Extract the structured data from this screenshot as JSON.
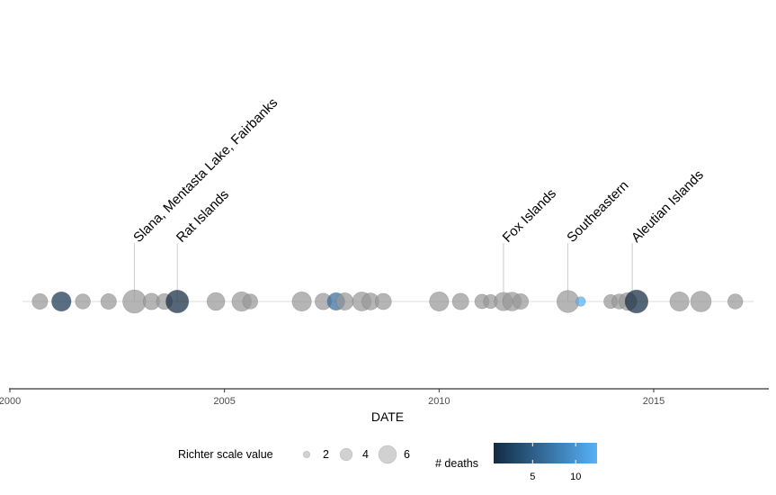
{
  "chart_data": {
    "type": "scatter",
    "title": "",
    "xlabel": "DATE",
    "ylabel": "",
    "x_range": [
      2000,
      2017.6
    ],
    "x_ticks": [
      2000,
      2005,
      2010,
      2015
    ],
    "grid": false,
    "points": [
      {
        "x": 2000.7,
        "richter": 5.2,
        "deaths": null
      },
      {
        "x": 2001.2,
        "richter": 6.6,
        "deaths": 2
      },
      {
        "x": 2001.7,
        "richter": 5.0,
        "deaths": null
      },
      {
        "x": 2002.3,
        "richter": 5.2,
        "deaths": null
      },
      {
        "x": 2002.9,
        "richter": 7.9,
        "deaths": null
      },
      {
        "x": 2003.3,
        "richter": 5.5,
        "deaths": null
      },
      {
        "x": 2003.6,
        "richter": 5.3,
        "deaths": null
      },
      {
        "x": 2003.9,
        "richter": 7.8,
        "deaths": 1
      },
      {
        "x": 2004.8,
        "richter": 6.0,
        "deaths": null
      },
      {
        "x": 2005.4,
        "richter": 6.6,
        "deaths": null
      },
      {
        "x": 2005.6,
        "richter": 5.0,
        "deaths": null
      },
      {
        "x": 2006.8,
        "richter": 6.5,
        "deaths": null
      },
      {
        "x": 2007.3,
        "richter": 5.5,
        "deaths": null
      },
      {
        "x": 2007.6,
        "richter": 5.9,
        "deaths": 7
      },
      {
        "x": 2007.8,
        "richter": 5.8,
        "deaths": null
      },
      {
        "x": 2008.2,
        "richter": 6.4,
        "deaths": null
      },
      {
        "x": 2008.4,
        "richter": 5.7,
        "deaths": null
      },
      {
        "x": 2008.7,
        "richter": 5.4,
        "deaths": null
      },
      {
        "x": 2010.0,
        "richter": 6.5,
        "deaths": null
      },
      {
        "x": 2010.5,
        "richter": 5.5,
        "deaths": null
      },
      {
        "x": 2011.0,
        "richter": 4.8,
        "deaths": null
      },
      {
        "x": 2011.2,
        "richter": 4.6,
        "deaths": null
      },
      {
        "x": 2011.5,
        "richter": 6.2,
        "deaths": null
      },
      {
        "x": 2011.7,
        "richter": 6.3,
        "deaths": null
      },
      {
        "x": 2011.9,
        "richter": 5.2,
        "deaths": null
      },
      {
        "x": 2013.0,
        "richter": 7.5,
        "deaths": null
      },
      {
        "x": 2013.3,
        "richter": 3.0,
        "deaths": 13
      },
      {
        "x": 2014.0,
        "richter": 4.6,
        "deaths": null
      },
      {
        "x": 2014.2,
        "richter": 5.0,
        "deaths": null
      },
      {
        "x": 2014.4,
        "richter": 6.0,
        "deaths": null
      },
      {
        "x": 2014.6,
        "richter": 7.9,
        "deaths": 1
      },
      {
        "x": 2015.6,
        "richter": 6.5,
        "deaths": null
      },
      {
        "x": 2016.1,
        "richter": 7.0,
        "deaths": null
      },
      {
        "x": 2016.9,
        "richter": 5.0,
        "deaths": null
      }
    ],
    "annotations": [
      {
        "x": 2002.9,
        "label": "Slana, Mentasta Lake, Fairbanks"
      },
      {
        "x": 2003.9,
        "label": "Rat Islands"
      },
      {
        "x": 2011.5,
        "label": "Fox Islands"
      },
      {
        "x": 2013.0,
        "label": "Southeastern"
      },
      {
        "x": 2014.5,
        "label": "Aleutian Islands"
      }
    ],
    "legend": {
      "position": "bottom",
      "size_title": "Richter scale value",
      "size_breaks": [
        2,
        4,
        6
      ],
      "color_title": "# deaths",
      "color_breaks": [
        5,
        10
      ],
      "color_range": [
        1,
        13
      ],
      "color_low": "#132B43",
      "color_high": "#56B1F7",
      "na_color": "#999999"
    }
  }
}
